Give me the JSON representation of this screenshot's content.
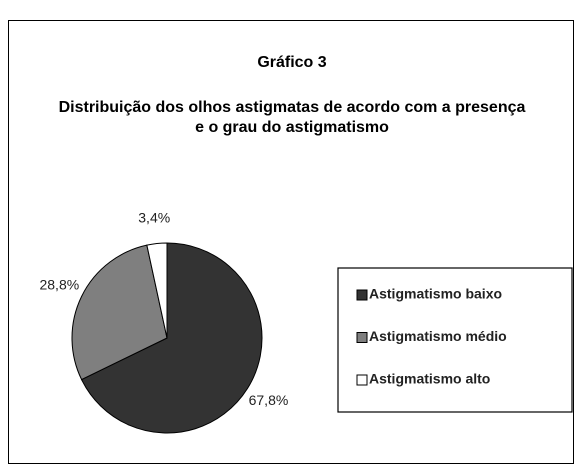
{
  "chart_data": {
    "type": "pie",
    "title": "Gráfico 3",
    "subtitle": "Distribuição dos olhos astigmatas de acordo com a presença e o grau do astigmatismo",
    "categories": [
      "Astigmatismo baixo",
      "Astigmatismo médio",
      "Astigmatismo alto"
    ],
    "values": [
      67.8,
      28.8,
      3.4
    ],
    "value_labels": [
      "67,8%",
      "28,8%",
      "3,4%"
    ],
    "colors": [
      "#333333",
      "#7f7f7f",
      "#ffffff"
    ],
    "legend": "right"
  }
}
